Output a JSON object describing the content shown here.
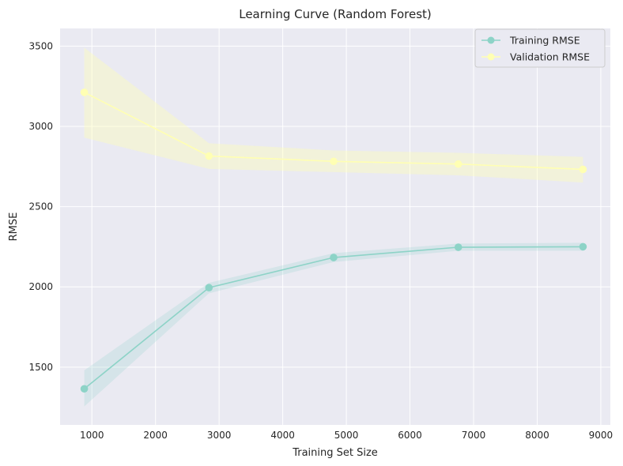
{
  "chart_data": {
    "type": "line",
    "title": "Learning Curve (Random Forest)",
    "xlabel": "Training Set Size",
    "ylabel": "RMSE",
    "xlim": [
      500,
      9150
    ],
    "ylim": [
      1140,
      3610
    ],
    "xticks": [
      1000,
      2000,
      3000,
      4000,
      5000,
      6000,
      7000,
      8000,
      9000
    ],
    "yticks": [
      1500,
      2000,
      2500,
      3000,
      3500
    ],
    "grid": true,
    "legend_position": "top-right",
    "x": [
      880,
      2840,
      4800,
      6760,
      8720
    ],
    "series": [
      {
        "name": "Training RMSE",
        "color": "#8dd3c7",
        "values": [
          1365,
          1995,
          2183,
          2247,
          2250
        ],
        "band_lower": [
          1255,
          1960,
          2155,
          2225,
          2225
        ],
        "band_upper": [
          1480,
          2025,
          2210,
          2270,
          2275
        ]
      },
      {
        "name": "Validation RMSE",
        "color": "#ffffb3",
        "values": [
          3212,
          2815,
          2782,
          2765,
          2732
        ],
        "band_lower": [
          2930,
          2735,
          2715,
          2695,
          2650
        ],
        "band_upper": [
          3490,
          2895,
          2850,
          2835,
          2810
        ]
      }
    ]
  }
}
